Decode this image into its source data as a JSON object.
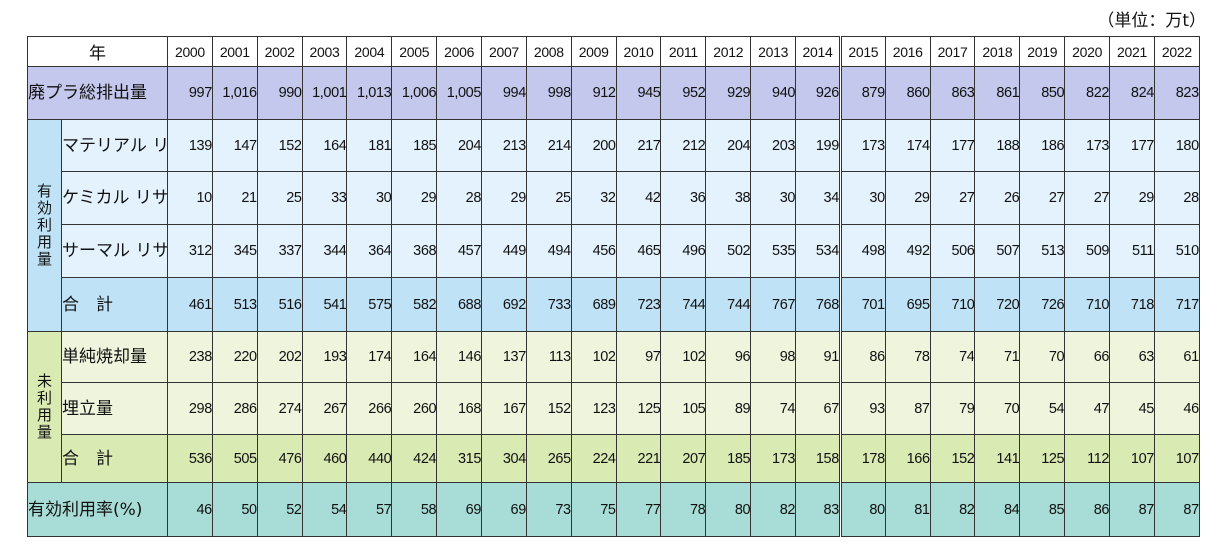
{
  "unit": "（単位：万t）",
  "header_label": "年",
  "years": [
    "2000",
    "2001",
    "2002",
    "2003",
    "2004",
    "2005",
    "2006",
    "2007",
    "2008",
    "2009",
    "2010",
    "2011",
    "2012",
    "2013",
    "2014",
    "2015",
    "2016",
    "2017",
    "2018",
    "2019",
    "2020",
    "2021",
    "2022"
  ],
  "groups": {
    "used": "有効利用量",
    "unused": "未利用量"
  },
  "rows": {
    "total_waste": {
      "label": "廃プラ総排出量",
      "values": [
        "997",
        "1,016",
        "990",
        "1,001",
        "1,013",
        "1,006",
        "1,005",
        "994",
        "998",
        "912",
        "945",
        "952",
        "929",
        "940",
        "926",
        "879",
        "860",
        "863",
        "861",
        "850",
        "822",
        "824",
        "823"
      ]
    },
    "material": {
      "label": "マテリアル\nリサイクル",
      "values": [
        "139",
        "147",
        "152",
        "164",
        "181",
        "185",
        "204",
        "213",
        "214",
        "200",
        "217",
        "212",
        "204",
        "203",
        "199",
        "173",
        "174",
        "177",
        "188",
        "186",
        "173",
        "177",
        "180"
      ]
    },
    "chemical": {
      "label": "ケミカル\nリサイクル",
      "values": [
        "10",
        "21",
        "25",
        "33",
        "30",
        "29",
        "28",
        "29",
        "25",
        "32",
        "42",
        "36",
        "38",
        "30",
        "34",
        "30",
        "29",
        "27",
        "26",
        "27",
        "27",
        "29",
        "28"
      ]
    },
    "thermal": {
      "label": "サーマル\nリサイクル",
      "values": [
        "312",
        "345",
        "337",
        "344",
        "364",
        "368",
        "457",
        "449",
        "494",
        "456",
        "465",
        "496",
        "502",
        "535",
        "534",
        "498",
        "492",
        "506",
        "507",
        "513",
        "509",
        "511",
        "510"
      ]
    },
    "used_total": {
      "label": "合　計",
      "values": [
        "461",
        "513",
        "516",
        "541",
        "575",
        "582",
        "688",
        "692",
        "733",
        "689",
        "723",
        "744",
        "744",
        "767",
        "768",
        "701",
        "695",
        "710",
        "720",
        "726",
        "710",
        "718",
        "717"
      ]
    },
    "incineration": {
      "label": "単純焼却量",
      "values": [
        "238",
        "220",
        "202",
        "193",
        "174",
        "164",
        "146",
        "137",
        "113",
        "102",
        "97",
        "102",
        "96",
        "98",
        "91",
        "86",
        "78",
        "74",
        "71",
        "70",
        "66",
        "63",
        "61"
      ]
    },
    "landfill": {
      "label": "埋立量",
      "values": [
        "298",
        "286",
        "274",
        "267",
        "266",
        "260",
        "168",
        "167",
        "152",
        "123",
        "125",
        "105",
        "89",
        "74",
        "67",
        "93",
        "87",
        "79",
        "70",
        "54",
        "47",
        "45",
        "46"
      ]
    },
    "unused_total": {
      "label": "合　計",
      "values": [
        "536",
        "505",
        "476",
        "460",
        "440",
        "424",
        "315",
        "304",
        "265",
        "224",
        "221",
        "207",
        "185",
        "173",
        "158",
        "178",
        "166",
        "152",
        "141",
        "125",
        "112",
        "107",
        "107"
      ]
    },
    "rate": {
      "label": "有効利用率(%)",
      "values": [
        "46",
        "50",
        "52",
        "54",
        "57",
        "58",
        "69",
        "69",
        "73",
        "75",
        "77",
        "78",
        "80",
        "82",
        "83",
        "80",
        "81",
        "82",
        "84",
        "85",
        "86",
        "87",
        "87"
      ]
    }
  },
  "colors": {
    "total_waste": "#c3c8ec",
    "used": "#e3f2fc",
    "used_total": "#bfe2f6",
    "unused": "#eef5dc",
    "unused_total": "#d9eab3",
    "rate": "#a8dcd6"
  }
}
